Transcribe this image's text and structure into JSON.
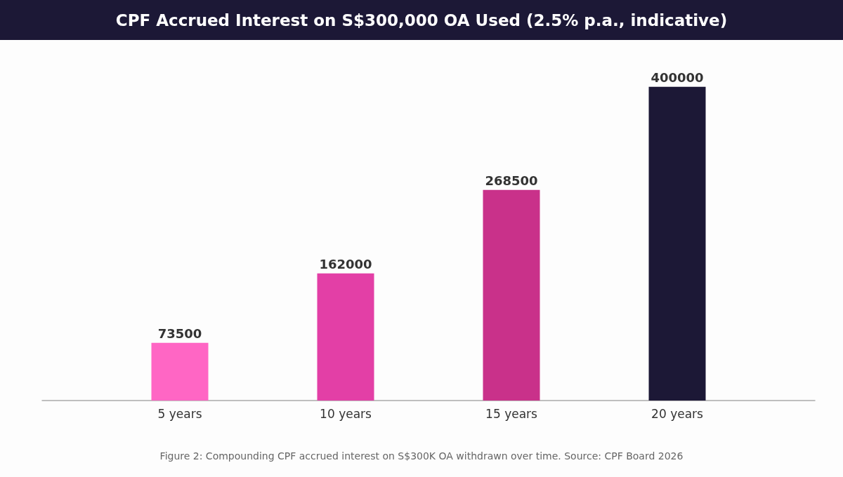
{
  "chart_data": {
    "type": "bar",
    "title": "CPF Accrued Interest on S$300,000 OA Used (2.5% p.a., indicative)",
    "categories": [
      "5 years",
      "10 years",
      "15 years",
      "20 years"
    ],
    "values": [
      73500,
      162000,
      268500,
      400000
    ],
    "colors": [
      "#ff66c4",
      "#e33fa6",
      "#c9318a",
      "#1c1836"
    ],
    "data_labels": true,
    "annotations": [
      "Figure 2: Compounding CPF accrued interest on S$300K OA withdrawn over time. Source: CPF Board 2026"
    ]
  }
}
